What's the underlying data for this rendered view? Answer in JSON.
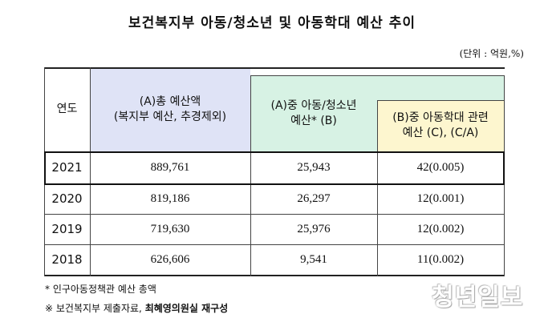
{
  "title": "보건복지부 아동/청소년 및 아동학대 예산 추이",
  "unit": "(단위 : 억원,%)",
  "table": {
    "headers": {
      "year": "연도",
      "total_line1": "(A)총 예산액",
      "total_line2": "(복지부 예산, 추경제외)",
      "youth_line1": "(A)중 아동/청소년",
      "youth_line2": "예산* (B)",
      "abuse_line1": "(B)중 아동학대 관련",
      "abuse_line2": "예산 (C), (C/A)"
    },
    "rows": [
      {
        "year": "2021",
        "total": "889,761",
        "youth": "25,943",
        "abuse": "42(0.005)"
      },
      {
        "year": "2020",
        "total": "819,186",
        "youth": "26,297",
        "abuse": "12(0.001)"
      },
      {
        "year": "2019",
        "total": "719,630",
        "youth": "25,976",
        "abuse": "12(0.002)"
      },
      {
        "year": "2018",
        "total": "626,606",
        "youth": "9,541",
        "abuse": "11(0.002)"
      }
    ]
  },
  "notes": {
    "note1": "* 인구아동정책관 예산 총액",
    "note2_prefix": "※ 보건복지부 제출자료,",
    "note2_strong": "최혜영의원실 재구성"
  },
  "watermark": "청년일보",
  "colors": {
    "year_header_bg": "#ffffff",
    "total_header_bg": "#dfe3f6",
    "youth_header_bg": "#d7f2e4",
    "abuse_header_bg": "#fdf6cf"
  }
}
